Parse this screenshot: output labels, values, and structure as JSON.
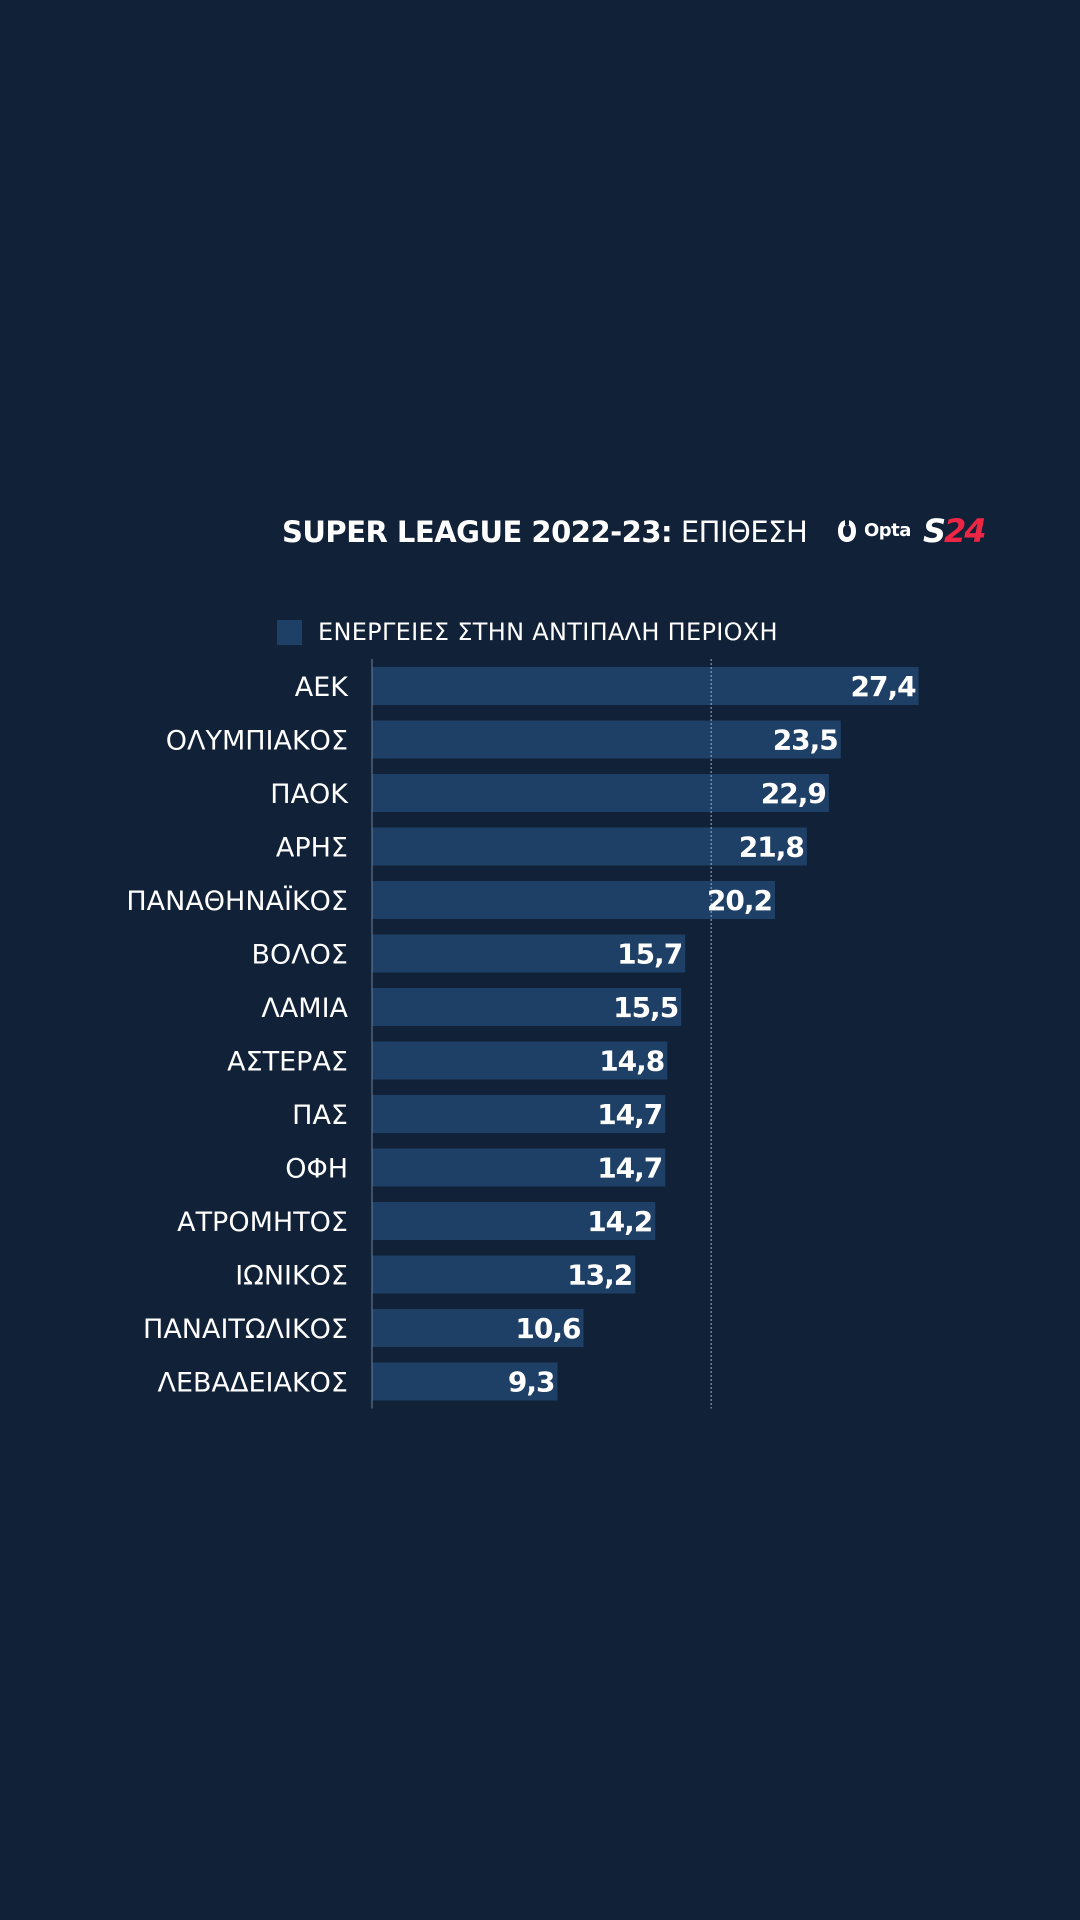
{
  "header": {
    "title_bold": "SUPER LEAGUE 2022-23:",
    "title_regular": "ΕΠΙΘΕΣΗ",
    "opta_logo": "Opta",
    "brand_logo_s": "S",
    "brand_logo_num": "24",
    "brand_color": "#ee2645"
  },
  "colors": {
    "background": "#112137",
    "bar": "#1e3f66",
    "text": "#ffffff"
  },
  "chart_data": {
    "type": "bar",
    "orientation": "horizontal",
    "title": "SUPER LEAGUE 2022-23: ΕΠΙΘΕΣΗ",
    "legend": [
      "ΕΝΕΡΓΕΙΕΣ ΣΤΗΝ ΑΝΤΙΠΑΛΗ ΠΕΡΙΟΧΗ"
    ],
    "legend_position": "top-left",
    "series_name": "ΕΝΕΡΓΕΙΕΣ ΣΤΗΝ ΑΝΤΙΠΑΛΗ ΠΕΡΙΟΧΗ",
    "categories": [
      "ΑΕΚ",
      "ΟΛΥΜΠΙΑΚΟΣ",
      "ΠΑΟΚ",
      "ΑΡΗΣ",
      "ΠΑΝΑΘΗΝΑΪΚΟΣ",
      "ΒΟΛΟΣ",
      "ΛΑΜΙΑ",
      "ΑΣΤΕΡΑΣ",
      "ΠΑΣ",
      "ΟΦΗ",
      "ΑΤΡΟΜΗΤΟΣ",
      "ΙΩΝΙΚΟΣ",
      "ΠΑΝΑΙΤΩΛΙΚΟΣ",
      "ΛΕΒΑΔΕΙΑΚΟΣ"
    ],
    "values": [
      27.4,
      23.5,
      22.9,
      21.8,
      20.2,
      15.7,
      15.5,
      14.8,
      14.7,
      14.7,
      14.2,
      13.2,
      10.6,
      9.3
    ],
    "value_labels": [
      "27,4",
      "23,5",
      "22,9",
      "21,8",
      "20,2",
      "15,7",
      "15,5",
      "14,8",
      "14,7",
      "14,7",
      "14,2",
      "13,2",
      "10,6",
      "9,3"
    ],
    "reference_line": 17.0,
    "xlim": [
      0,
      29
    ],
    "xlabel": "",
    "ylabel": "",
    "grid": false
  }
}
